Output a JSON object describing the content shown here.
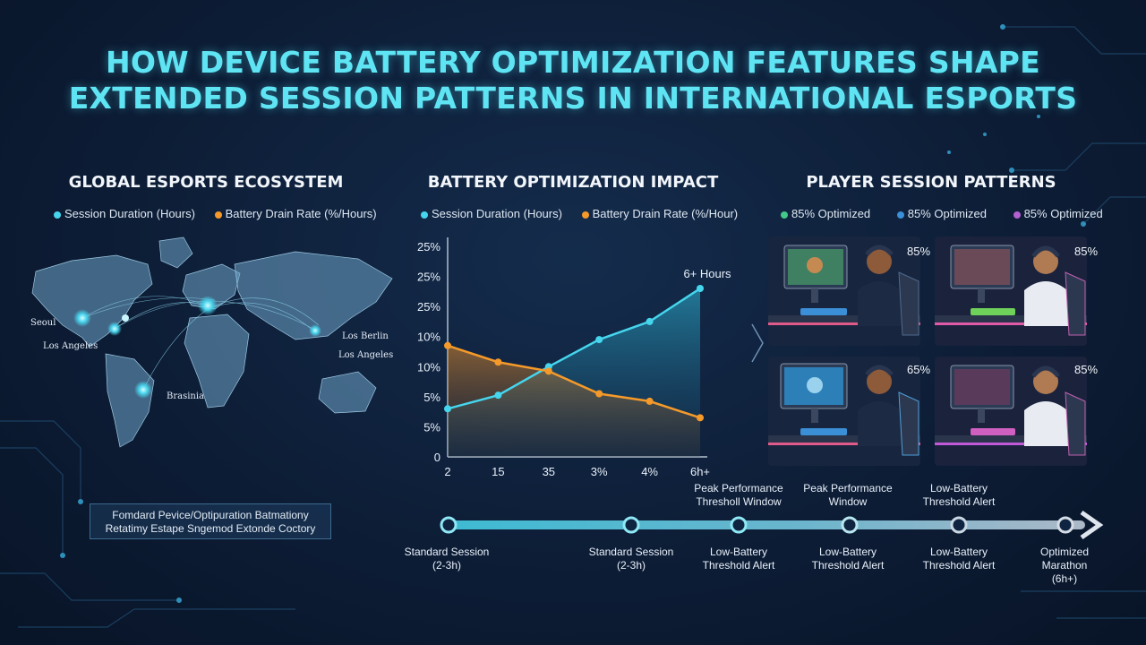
{
  "title": {
    "line1": "HOW DEVICE BATTERY OPTIMIZATION FEATURES SHAPE",
    "line2": "EXTENDED SESSION PATTERNS IN INTERNATIONAL ESPORTS"
  },
  "ecosystem": {
    "title": "GLOBAL ESPORTS ECOSYSTEM",
    "legend": [
      {
        "label": "Session Duration (Hours)",
        "color": "#45d6ee"
      },
      {
        "label": "Battery Drain Rate (%/Hours)",
        "color": "#f59a2a"
      }
    ],
    "cities": [
      "Seoul",
      "Los Angeles",
      "Los Berlin",
      "Los Angeles",
      "Brasinia"
    ],
    "note": {
      "line1": "Fomdard Pevice/Optipuration Batmationy",
      "line2": "Retatimy Estape Sngemod Extonde Coctory"
    }
  },
  "impact": {
    "title": "BATTERY OPTIMIZATION IMPACT",
    "legend": [
      {
        "label": "Session Duration (Hours)",
        "color": "#45d6ee"
      },
      {
        "label": "Battery Drain Rate (%/Hour)",
        "color": "#f59a2a"
      }
    ]
  },
  "chart_data": {
    "type": "line",
    "title": "BATTERY OPTIMIZATION IMPACT",
    "categories": [
      "2",
      "15",
      "35",
      "3%",
      "4%",
      "6h+"
    ],
    "y_tick_labels": [
      "0",
      "5%",
      "5%",
      "10%",
      "10%",
      "25%",
      "25%",
      "25%"
    ],
    "ylim": [
      0,
      7
    ],
    "grid": false,
    "legend_position": "top",
    "series": [
      {
        "name": "Session Duration (Hours)",
        "color": "#45d6ee",
        "values": [
          1.6,
          2.05,
          3.0,
          3.9,
          4.5,
          5.6
        ]
      },
      {
        "name": "Battery Drain Rate (%/Hour)",
        "color": "#f59a2a",
        "values": [
          3.7,
          3.15,
          2.85,
          2.1,
          1.85,
          1.3
        ]
      }
    ],
    "annotations": [
      {
        "text": "6+ Hours",
        "at": "6h+"
      }
    ]
  },
  "sessions": {
    "title": "PLAYER SESSION PATTERNS",
    "legend": [
      {
        "label": "85% Optimized",
        "color": "#43c98a"
      },
      {
        "label": "85% Optimized",
        "color": "#3a8fd6"
      },
      {
        "label": "85% Optimized",
        "color": "#b45fd0"
      }
    ],
    "percents": [
      "85%",
      "85%",
      "65%",
      "85%"
    ],
    "upper_labels": [
      {
        "line1": "Peak Performance",
        "line2": "Thresholl Window"
      },
      {
        "line1": "Peak Performance",
        "line2": "Window"
      },
      {
        "line1": "Low-Battery",
        "line2": "Threshold Alert"
      }
    ]
  },
  "timeline": {
    "labels": [
      {
        "line1": "Standard Session",
        "line2": "(2-3h)",
        "line3": ""
      },
      {
        "line1": "Standard Session",
        "line2": "(2-3h)",
        "line3": ""
      },
      {
        "line1": "Low-Battery",
        "line2": "Threshold Alert",
        "line3": ""
      },
      {
        "line1": "Low-Battery",
        "line2": "Threshold Alert",
        "line3": ""
      },
      {
        "line1": "Low-Battery",
        "line2": "Threshold Alert",
        "line3": ""
      },
      {
        "line1": "Optimized",
        "line2": "Marathon",
        "line3": "(6h+)"
      }
    ]
  }
}
